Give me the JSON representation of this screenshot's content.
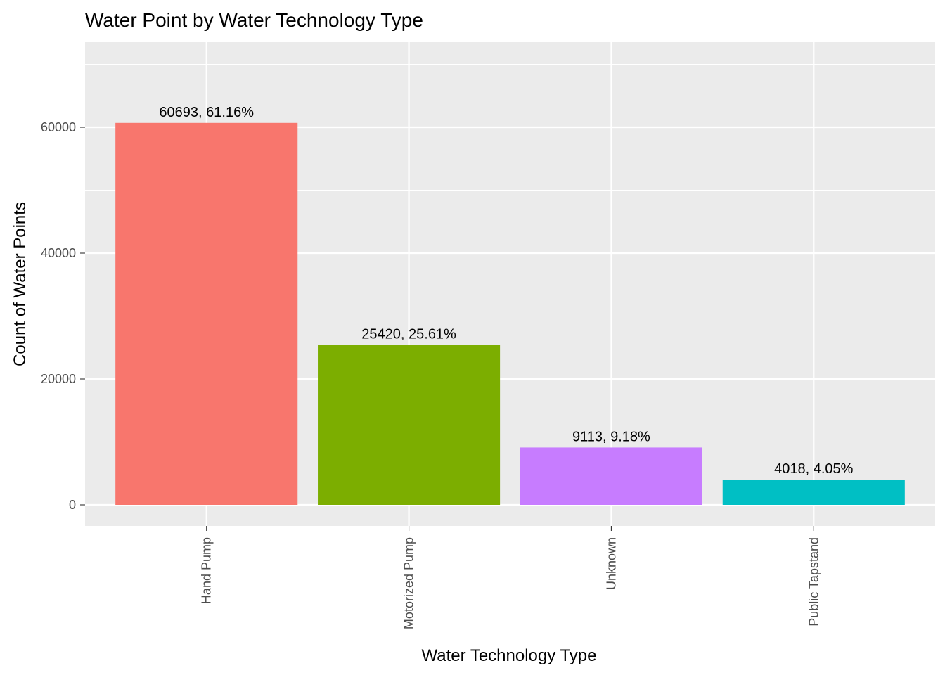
{
  "chart_data": {
    "type": "bar",
    "title": "Water Point by Water Technology Type",
    "xlabel": "Water Technology Type",
    "ylabel": "Count of Water Points",
    "categories": [
      "Hand Pump",
      "Motorized Pump",
      "Unknown",
      "Public Tapstand"
    ],
    "values": [
      60693,
      25420,
      9113,
      4018
    ],
    "data_labels": [
      "60693, 61.16%",
      "25420, 25.61%",
      "9113, 9.18%",
      "4018, 4.05%"
    ],
    "colors": [
      "#F8766D",
      "#7CAE00",
      "#C77CFF",
      "#00BFC4"
    ],
    "y_ticks": [
      0,
      20000,
      40000,
      60000
    ],
    "y_tick_labels": [
      "0",
      "20000",
      "40000",
      "60000"
    ],
    "ylim": [
      -3500,
      70000
    ],
    "grid": true,
    "legend": "none",
    "x_tick_orientation": "vertical",
    "panel_background": "#EBEBEB",
    "grid_color": "#FFFFFF"
  }
}
